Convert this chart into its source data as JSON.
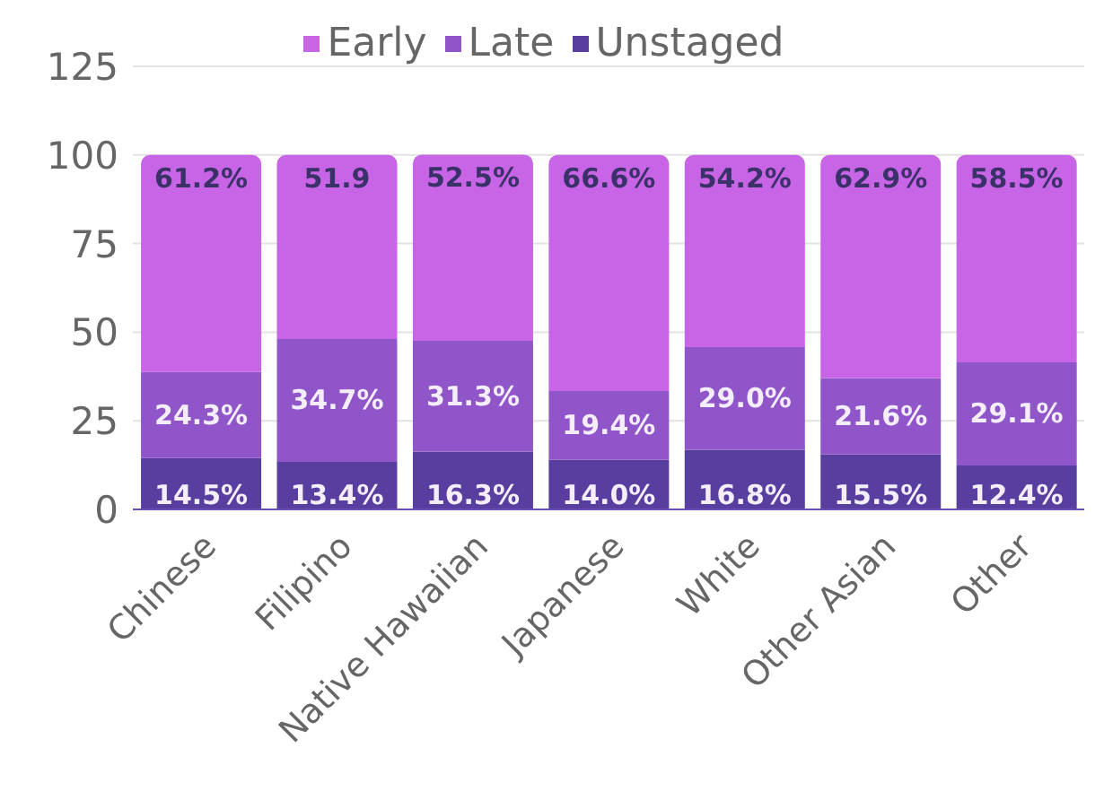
{
  "chart_data": {
    "type": "bar",
    "stacked": true,
    "categories": [
      "Chinese",
      "Filipino",
      "Native Hawaiian",
      "Japanese",
      "White",
      "Other Asian",
      "Other"
    ],
    "series": [
      {
        "name": "Unstaged",
        "color": "#583e9e",
        "values": [
          14.5,
          13.4,
          16.3,
          14.0,
          16.8,
          15.5,
          12.4
        ],
        "value_labels": [
          "14.5%",
          "13.4%",
          "16.3%",
          "14.0%",
          "16.8%",
          "15.5%",
          "12.4%"
        ]
      },
      {
        "name": "Late",
        "color": "#9056c9",
        "values": [
          24.3,
          34.7,
          31.3,
          19.4,
          29.0,
          21.6,
          29.1
        ],
        "value_labels": [
          "24.3%",
          "34.7%",
          "31.3%",
          "19.4%",
          "29.0%",
          "21.6%",
          "29.1%"
        ]
      },
      {
        "name": "Early",
        "color": "#c865e6",
        "values": [
          61.2,
          51.9,
          52.5,
          66.6,
          54.2,
          62.9,
          58.5
        ],
        "value_labels": [
          "61.2%",
          "51.9",
          "52.5%",
          "66.6%",
          "54.2%",
          "62.9%",
          "58.5%"
        ]
      }
    ],
    "ylim": [
      0,
      125
    ],
    "yticks": [
      0,
      25,
      50,
      75,
      100,
      125
    ],
    "grid": "y",
    "legend": "top"
  }
}
